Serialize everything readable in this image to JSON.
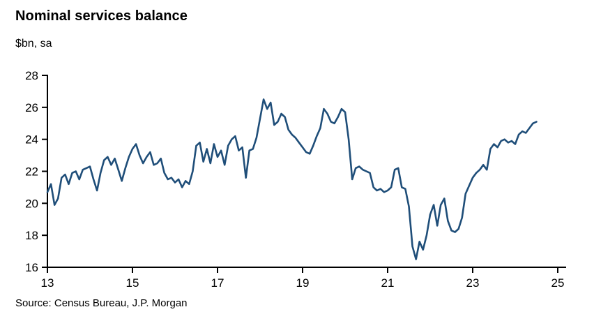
{
  "chart": {
    "title": "Nominal services balance",
    "subtitle": "$bn, sa",
    "source": "Source: Census Bureau, J.P. Morgan"
  },
  "chart_data": {
    "type": "line",
    "title": "Nominal services balance",
    "ylabel": "$bn, sa",
    "source": "Source: Census Bureau, J.P. Morgan",
    "series_name": "Nominal services balance",
    "frequency": "monthly",
    "x_unit": "two-digit calendar year (2013-2025 axis)",
    "x_start": 13.0,
    "x_step": 0.0833333,
    "xlim": [
      13,
      25
    ],
    "ylim": [
      16,
      28
    ],
    "x_ticks": [
      13,
      15,
      17,
      19,
      21,
      23,
      25
    ],
    "y_ticks": [
      16,
      18,
      20,
      22,
      24,
      26,
      28
    ],
    "grid": false,
    "legend": "none",
    "line_color": "#1F4E79",
    "axis_color": "#000000",
    "values": [
      20.7,
      21.2,
      19.9,
      20.3,
      21.6,
      21.8,
      21.2,
      21.9,
      22.0,
      21.5,
      22.1,
      22.2,
      22.3,
      21.5,
      20.8,
      21.9,
      22.7,
      22.9,
      22.4,
      22.8,
      22.1,
      21.4,
      22.2,
      22.9,
      23.4,
      23.7,
      23.0,
      22.5,
      22.9,
      23.2,
      22.4,
      22.5,
      22.8,
      21.9,
      21.5,
      21.6,
      21.3,
      21.5,
      21.0,
      21.4,
      21.2,
      22.0,
      23.6,
      23.8,
      22.6,
      23.4,
      22.5,
      23.7,
      22.9,
      23.3,
      22.4,
      23.6,
      24.0,
      24.2,
      23.3,
      23.5,
      21.6,
      23.3,
      23.4,
      24.1,
      25.3,
      26.5,
      25.9,
      26.3,
      24.9,
      25.1,
      25.6,
      25.4,
      24.6,
      24.3,
      24.1,
      23.8,
      23.5,
      23.2,
      23.1,
      23.6,
      24.2,
      24.7,
      25.9,
      25.6,
      25.1,
      25.0,
      25.4,
      25.9,
      25.7,
      24.0,
      21.5,
      22.2,
      22.3,
      22.1,
      22.0,
      21.9,
      21.0,
      20.8,
      20.9,
      20.7,
      20.8,
      21.0,
      22.1,
      22.2,
      21.0,
      20.9,
      19.8,
      17.3,
      16.5,
      17.6,
      17.1,
      18.0,
      19.3,
      19.9,
      18.6,
      19.9,
      20.3,
      18.9,
      18.3,
      18.2,
      18.4,
      19.1,
      20.6,
      21.1,
      21.6,
      21.9,
      22.1,
      22.4,
      22.1,
      23.4,
      23.7,
      23.5,
      23.9,
      24.0,
      23.8,
      23.9,
      23.7,
      24.3,
      24.5,
      24.4,
      24.7,
      25.0,
      25.1
    ]
  }
}
